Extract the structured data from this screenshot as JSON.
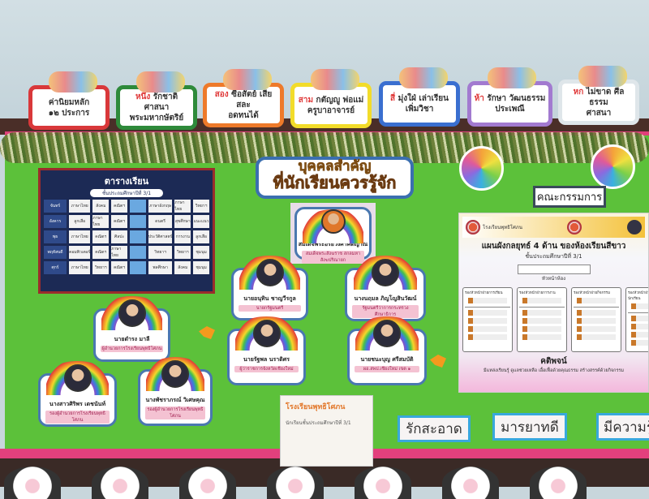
{
  "top_cards": [
    {
      "head": "",
      "line1": "ค่านิยมหลัก",
      "line2": "๑๒ ประการ",
      "color": "#d9383a"
    },
    {
      "head": "หนึ่ง",
      "line1": "รักชาติ ศาสนา",
      "line2": "พระมหากษัตริย์",
      "color": "#2e8a3a"
    },
    {
      "head": "สอง",
      "line1": "ซื่อสัตย์ เสียสละ",
      "line2": "อดทนได้",
      "color": "#ee7a2a"
    },
    {
      "head": "สาม",
      "line1": "กตัญญู พ่อแม่",
      "line2": "ครูบาอาจารย์",
      "color": "#f2dc2a"
    },
    {
      "head": "สี่",
      "line1": "มุ่งใฝ่ เล่าเรียน",
      "line2": "เพิ่มวิชา",
      "color": "#3a6fd0"
    },
    {
      "head": "ห้า",
      "line1": "รักษา วัฒนธรรม",
      "line2": "ประเพณี",
      "color": "#a27ad0"
    },
    {
      "head": "หก",
      "line1": "ไม่ขาด ศีลธรรม",
      "line2": "ศาสนา",
      "color": "#dfe6ea"
    }
  ],
  "timetable": {
    "title": "ตารางเรียน",
    "subtitle": "ชั้นประถมศึกษาปีที่ 3/1",
    "days": [
      "จันทร์",
      "อังคาร",
      "พุธ",
      "พฤหัสบดี",
      "ศุกร์"
    ],
    "rows": [
      [
        "ภาษาไทย",
        "สังคม",
        "คณิตฯ",
        "",
        "ภาษาอังกฤษ",
        "ภาษาไทย",
        "วิทยาฯ"
      ],
      [
        "ลูกเสือ",
        "ภาษาไทย",
        "คณิตฯ",
        "",
        "ดนตรี",
        "สุขศึกษา",
        "แนะแนว"
      ],
      [
        "ภาษาไทย",
        "คณิตฯ",
        "ศิลปะ",
        "",
        "ประวัติศาสตร์",
        "การงาน",
        "ลูกเสือ"
      ],
      [
        "คอมพิวเตอร์",
        "คณิตฯ",
        "ภาษาไทย",
        "",
        "วิทยาฯ",
        "วิทยาฯ",
        "ชุมนุม"
      ],
      [
        "ภาษาไทย",
        "วิทยาฯ",
        "คณิตฯ",
        "",
        "พลศึกษา",
        "สังคม",
        "ชุมนุม"
      ]
    ]
  },
  "title_banner": {
    "line1": "บุคคลสำคัญ",
    "line2": "ที่นักเรียนควรรู้จัก"
  },
  "monk": {
    "name": "สมเด็จพระอริยวงศาคตญาณ",
    "position": "สมเด็จพระสังฆราช สกลมหาสังฆปริณายก"
  },
  "people": [
    {
      "name": "นายอนุทิน ชาญวีรกูล",
      "position": "นายกรัฐมนตรี"
    },
    {
      "name": "นางนฤมล ภิญโญสินวัฒน์",
      "position": "รัฐมนตรีว่าการกระทรวงศึกษาธิการ"
    },
    {
      "name": "นายดำรง มาลี",
      "position": "ผู้อำนวยการโรงเรียนพุทธิโศภน"
    },
    {
      "name": "นายรัฐพล นราดิศร",
      "position": "ผู้ว่าราชการจังหวัดเชียงใหม่"
    },
    {
      "name": "นายชนะบุญ ศรีสมบัติ",
      "position": "ผอ.สพป.เชียงใหม่ เขต ๑"
    },
    {
      "name": "นางสาวศิริพร เดชนันท์",
      "position": "รองผู้อำนวยการโรงเรียนพุทธิโศภน"
    },
    {
      "name": "นางพัชราภรณ์ วิเศษคุณ",
      "position": "รองผู้อำนวยการโรงเรียนพุทธิโศภน"
    }
  ],
  "poster": {
    "school": "โรงเรียนพุทธิโศภน",
    "class": "นักเรียนชั้นประถมศึกษาปีที่ 3/1"
  },
  "committee_label": "คณะกรรมการ",
  "strategy": {
    "school": "โรงเรียนพุทธิโศภน",
    "title": "แผนผังกลยุทธ์ 4 ด้าน ของห้องเรียนสีขาว",
    "subtitle": "ชั้นประถมศึกษาปีที่ 3/1",
    "head": "หัวหน้าห้อง",
    "columns": [
      "รองหัวหน้าฝ่ายการเรียน",
      "รองหัวหน้าฝ่ายการงาน",
      "รองหัวหน้าฝ่ายกิจกรรม",
      "รองหัวหน้าฝ่ายสารวัตรนักเรียน"
    ],
    "motto_heading": "คติพจน์",
    "motto": "มีแหล่งเรียนรู้ ดูแลช่วยเหลือ เอื้อเฟื้อด้วยคุณธรรม สร้างสรรค์ด้วยกิจกรรม"
  },
  "words": [
    "รักสะอาด",
    "มารยาทดี",
    "มีความรู้"
  ]
}
